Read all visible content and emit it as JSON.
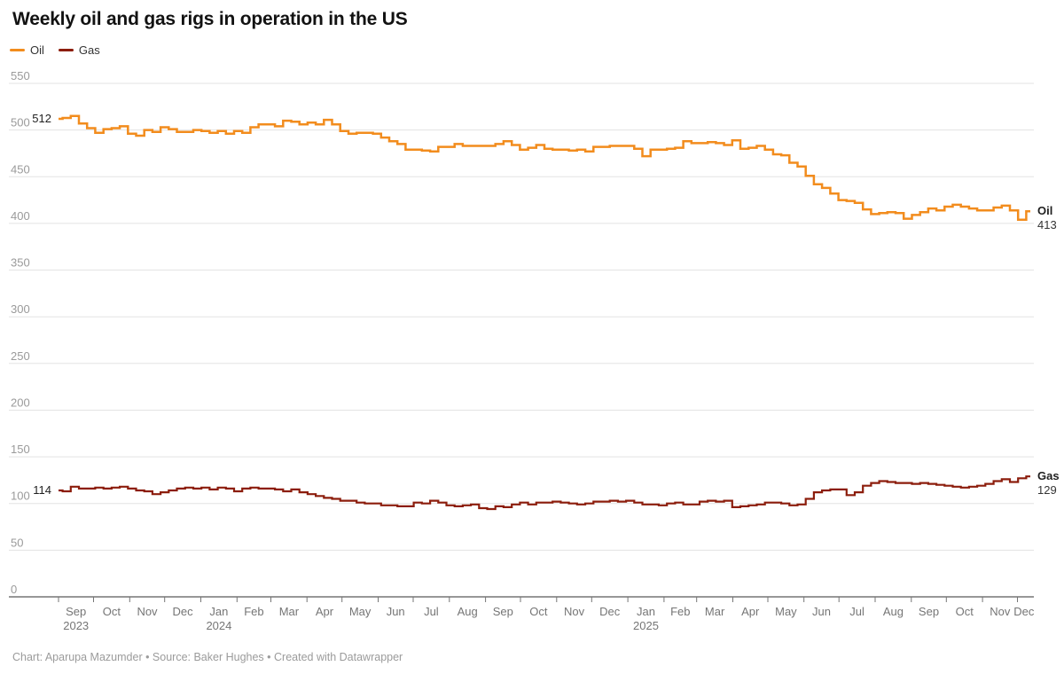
{
  "title": "Weekly oil and gas rigs in operation in the US",
  "legend": {
    "items": [
      {
        "label": "Oil",
        "color": "#F28C1D"
      },
      {
        "label": "Gas",
        "color": "#8C1D0C"
      }
    ]
  },
  "footer": "Chart: Aparupa Mazumder • Source: Baker Hughes • Created with Datawrapper",
  "colors": {
    "grid": "#E3E3E3",
    "axis": "#757575",
    "y_label": "#9A9A9A",
    "month_label": "#757575",
    "value_label": "#1F1F1F"
  },
  "chart_data": {
    "type": "line",
    "line_style": "step",
    "x_unit": "week",
    "x_range": "Sep 2023 – Dec 2025",
    "span_days": 833,
    "ylim": [
      0,
      550
    ],
    "y_ticks": [
      0,
      50,
      100,
      150,
      200,
      250,
      300,
      350,
      400,
      450,
      500,
      550
    ],
    "grid": true,
    "legend_position": "top-left",
    "months": [
      {
        "label": "Sep",
        "year": "2023",
        "day": 0
      },
      {
        "label": "Oct",
        "day": 30
      },
      {
        "label": "Nov",
        "day": 61
      },
      {
        "label": "Dec",
        "day": 91
      },
      {
        "label": "Jan",
        "year": "2024",
        "day": 122
      },
      {
        "label": "Feb",
        "day": 153
      },
      {
        "label": "Mar",
        "day": 182
      },
      {
        "label": "Apr",
        "day": 213
      },
      {
        "label": "May",
        "day": 243
      },
      {
        "label": "Jun",
        "day": 274
      },
      {
        "label": "Jul",
        "day": 304
      },
      {
        "label": "Aug",
        "day": 335
      },
      {
        "label": "Sep",
        "day": 366
      },
      {
        "label": "Oct",
        "day": 396
      },
      {
        "label": "Nov",
        "day": 427
      },
      {
        "label": "Dec",
        "day": 457
      },
      {
        "label": "Jan",
        "year": "2025",
        "day": 488
      },
      {
        "label": "Feb",
        "day": 519
      },
      {
        "label": "Mar",
        "day": 547
      },
      {
        "label": "Apr",
        "day": 578
      },
      {
        "label": "May",
        "day": 608
      },
      {
        "label": "Jun",
        "day": 639
      },
      {
        "label": "Jul",
        "day": 669
      },
      {
        "label": "Aug",
        "day": 700
      },
      {
        "label": "Sep",
        "day": 731
      },
      {
        "label": "Oct",
        "day": 761
      },
      {
        "label": "Nov",
        "day": 792
      },
      {
        "label": "Dec",
        "day": 822
      }
    ],
    "series": [
      {
        "name": "Oil",
        "color": "#F28C1D",
        "stroke_width": 2.5,
        "start_label": "512",
        "end_label": "413",
        "values": [
          512,
          513,
          515,
          507,
          502,
          497,
          501,
          502,
          504,
          496,
          494,
          500,
          498,
          503,
          501,
          498,
          498,
          500,
          499,
          497,
          499,
          496,
          499,
          497,
          503,
          506,
          506,
          504,
          510,
          509,
          506,
          508,
          506,
          511,
          506,
          499,
          496,
          497,
          497,
          496,
          492,
          488,
          485,
          479,
          479,
          478,
          477,
          482,
          482,
          485,
          483,
          483,
          483,
          483,
          485,
          488,
          484,
          479,
          481,
          484,
          480,
          479,
          479,
          478,
          479,
          477,
          482,
          482,
          483,
          483,
          483,
          480,
          472,
          479,
          479,
          480,
          481,
          488,
          486,
          486,
          487,
          486,
          484,
          489,
          480,
          481,
          483,
          479,
          474,
          473,
          465,
          461,
          451,
          442,
          438,
          432,
          425,
          424,
          422,
          415,
          410,
          411,
          412,
          411,
          405,
          409,
          412,
          416,
          414,
          418,
          420,
          418,
          416,
          414,
          414,
          417,
          419,
          414,
          404,
          413
        ]
      },
      {
        "name": "Gas",
        "color": "#8C1D0C",
        "stroke_width": 2.2,
        "start_label": "114",
        "end_label": "129",
        "values": [
          114,
          113,
          118,
          116,
          116,
          117,
          116,
          117,
          118,
          116,
          114,
          113,
          110,
          112,
          114,
          116,
          117,
          116,
          117,
          115,
          117,
          116,
          113,
          116,
          117,
          116,
          116,
          115,
          113,
          115,
          112,
          110,
          108,
          106,
          105,
          103,
          103,
          101,
          100,
          100,
          98,
          98,
          97,
          97,
          101,
          100,
          103,
          101,
          98,
          97,
          98,
          99,
          95,
          94,
          97,
          96,
          99,
          101,
          99,
          101,
          101,
          102,
          101,
          100,
          99,
          100,
          102,
          102,
          103,
          102,
          103,
          101,
          99,
          99,
          98,
          100,
          101,
          99,
          99,
          102,
          103,
          102,
          103,
          96,
          97,
          98,
          99,
          101,
          101,
          100,
          98,
          99,
          105,
          112,
          114,
          115,
          115,
          109,
          112,
          119,
          122,
          124,
          123,
          122,
          122,
          121,
          122,
          121,
          120,
          119,
          118,
          117,
          118,
          119,
          121,
          124,
          126,
          123,
          127,
          129
        ]
      }
    ]
  }
}
